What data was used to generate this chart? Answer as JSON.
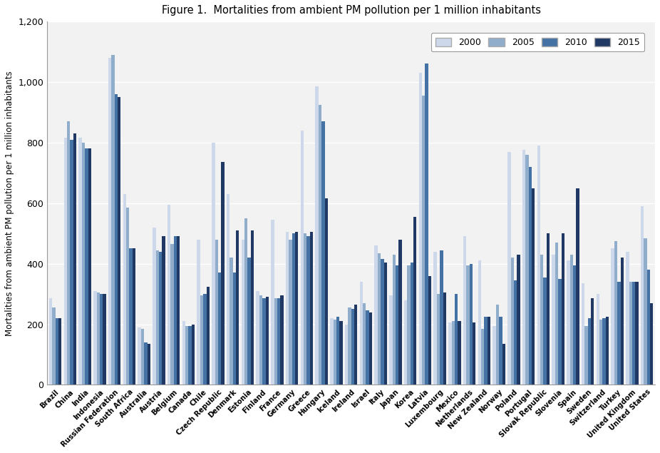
{
  "title": "Figure 1.  Mortalities from ambient PM pollution per 1 million inhabitants",
  "ylabel": "Mortalities from ambient PM pollution per 1 million inhabitants",
  "years": [
    "2000",
    "2005",
    "2010",
    "2015"
  ],
  "colors": [
    "#cdd9ea",
    "#90aecb",
    "#4472a4",
    "#1f3864"
  ],
  "ylim": [
    0,
    1200
  ],
  "yticks": [
    0,
    200,
    400,
    600,
    800,
    1000,
    1200
  ],
  "countries": [
    "Brazil",
    "China",
    "India",
    "Indonesia",
    "Russian\nFederation",
    "South Africa",
    "Australia",
    "Austria",
    "Belgium",
    "Canada",
    "Chile",
    "Czech Republic",
    "Denmark",
    "Estonia",
    "Finland",
    "France",
    "Germany",
    "Greece",
    "Hungary",
    "Iceland",
    "Ireland",
    "Israel",
    "Italy",
    "Japan",
    "Korea",
    "Latvia",
    "Luxembourg",
    "Mexico",
    "Netherlands",
    "New Zealand",
    "Norway",
    "Poland",
    "Portugal",
    "Slovak Republic",
    "Slovenia",
    "Spain",
    "Sweden",
    "Switzerland",
    "Turkey",
    "United Kingdom",
    "United States"
  ],
  "data": {
    "Brazil": [
      285,
      255,
      220,
      220
    ],
    "China": [
      815,
      870,
      810,
      830
    ],
    "India": [
      815,
      800,
      780,
      780
    ],
    "Indonesia": [
      310,
      305,
      300,
      300
    ],
    "Russian\nFederation": [
      1080,
      1090,
      960,
      950
    ],
    "South Africa": [
      630,
      585,
      450,
      450
    ],
    "Australia": [
      190,
      185,
      140,
      135
    ],
    "Austria": [
      520,
      445,
      440,
      490
    ],
    "Belgium": [
      595,
      465,
      490,
      490
    ],
    "Canada": [
      210,
      195,
      195,
      200
    ],
    "Chile": [
      480,
      295,
      300,
      325
    ],
    "Czech Republic": [
      800,
      480,
      370,
      735
    ],
    "Denmark": [
      630,
      420,
      370,
      510
    ],
    "Estonia": [
      480,
      550,
      420,
      510
    ],
    "Finland": [
      310,
      295,
      285,
      290
    ],
    "France": [
      545,
      285,
      285,
      295
    ],
    "Germany": [
      505,
      480,
      500,
      505
    ],
    "Greece": [
      840,
      500,
      490,
      505
    ],
    "Hungary": [
      985,
      925,
      870,
      615
    ],
    "Iceland": [
      220,
      215,
      225,
      210
    ],
    "Ireland": [
      200,
      255,
      250,
      265
    ],
    "Israel": [
      340,
      270,
      245,
      240
    ],
    "Italy": [
      460,
      435,
      415,
      405
    ],
    "Japan": [
      295,
      430,
      395,
      480
    ],
    "Korea": [
      280,
      395,
      405,
      555
    ],
    "Latvia": [
      1030,
      955,
      1060,
      360
    ],
    "Luxembourg": [
      440,
      300,
      445,
      305
    ],
    "Mexico": [
      205,
      210,
      300,
      210
    ],
    "Netherlands": [
      490,
      395,
      400,
      205
    ],
    "New Zealand": [
      410,
      185,
      225,
      225
    ],
    "Norway": [
      195,
      265,
      225,
      135
    ],
    "Poland": [
      770,
      420,
      345,
      430
    ],
    "Portugal": [
      775,
      760,
      720,
      650
    ],
    "Slovak Republic": [
      790,
      430,
      355,
      500
    ],
    "Slovenia": [
      430,
      470,
      350,
      500
    ],
    "Spain": [
      410,
      430,
      395,
      650
    ],
    "Sweden": [
      335,
      195,
      220,
      285
    ],
    "Switzerland": [
      300,
      215,
      220,
      225
    ],
    "Turkey": [
      450,
      475,
      340,
      420
    ],
    "United Kingdom": [
      440,
      340,
      340,
      340
    ],
    "United States": [
      590,
      485,
      380,
      270
    ]
  },
  "background_color": "#ffffff",
  "plot_background": "#f2f2f2",
  "grid_color": "#ffffff"
}
